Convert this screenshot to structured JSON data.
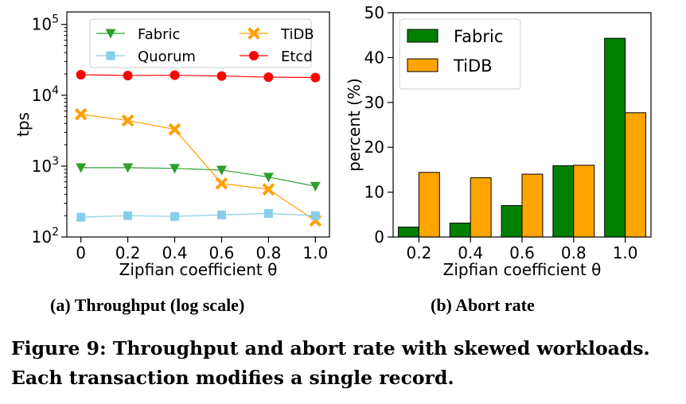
{
  "chart_data": [
    {
      "type": "line",
      "title": "",
      "xlabel": "Zipfian coefficient θ",
      "ylabel": "tps",
      "yscale": "log",
      "ylim": [
        100,
        150000
      ],
      "xlim": [
        -0.06,
        1.06
      ],
      "x": [
        0,
        0.2,
        0.4,
        0.6,
        0.8,
        1.0
      ],
      "x_tick_labels": [
        "0",
        "0.2",
        "0.4",
        "0.6",
        "0.8",
        "1.0"
      ],
      "y_tick_labels": [
        {
          "value": 100,
          "base": "10",
          "exp": "2"
        },
        {
          "value": 1000,
          "base": "10",
          "exp": "3"
        },
        {
          "value": 10000,
          "base": "10",
          "exp": "4"
        },
        {
          "value": 100000,
          "base": "10",
          "exp": "5"
        }
      ],
      "grid": false,
      "legend": "top, two columns",
      "series": [
        {
          "name": "Fabric",
          "color": "#2ca02c",
          "marker": "triangle-down",
          "values": [
            950,
            950,
            930,
            880,
            700,
            520
          ]
        },
        {
          "name": "TiDB",
          "color": "#ff9f00",
          "marker": "x",
          "values": [
            5400,
            4400,
            3300,
            570,
            470,
            170
          ]
        },
        {
          "name": "Quorum",
          "color": "#87ceeb",
          "marker": "square",
          "values": [
            190,
            200,
            195,
            205,
            215,
            200
          ]
        },
        {
          "name": "Etcd",
          "color": "#ff0000",
          "marker": "circle",
          "values": [
            19500,
            19000,
            19200,
            18700,
            18000,
            17800
          ]
        }
      ]
    },
    {
      "type": "bar",
      "title": "",
      "xlabel": "Zipfian coefficient θ",
      "ylabel": "percent (%)",
      "ylim": [
        0,
        50
      ],
      "y_ticks": [
        0,
        10,
        20,
        30,
        40,
        50
      ],
      "categories": [
        "0.2",
        "0.4",
        "0.6",
        "0.8",
        "1.0"
      ],
      "grid": false,
      "legend": "top-left",
      "series": [
        {
          "name": "Fabric",
          "color": "#008000",
          "values": [
            2.2,
            3.1,
            7.0,
            15.9,
            44.3
          ]
        },
        {
          "name": "TiDB",
          "color": "#ffa500",
          "values": [
            14.4,
            13.2,
            14.0,
            16.0,
            27.7
          ]
        }
      ]
    }
  ],
  "subcaptions": {
    "a": "(a) Throughput (log scale)",
    "b": "(b) Abort rate"
  },
  "caption": {
    "line1": "Figure 9: Throughput and abort rate with skewed workloads.",
    "line2": "Each transaction modifies a single record."
  }
}
